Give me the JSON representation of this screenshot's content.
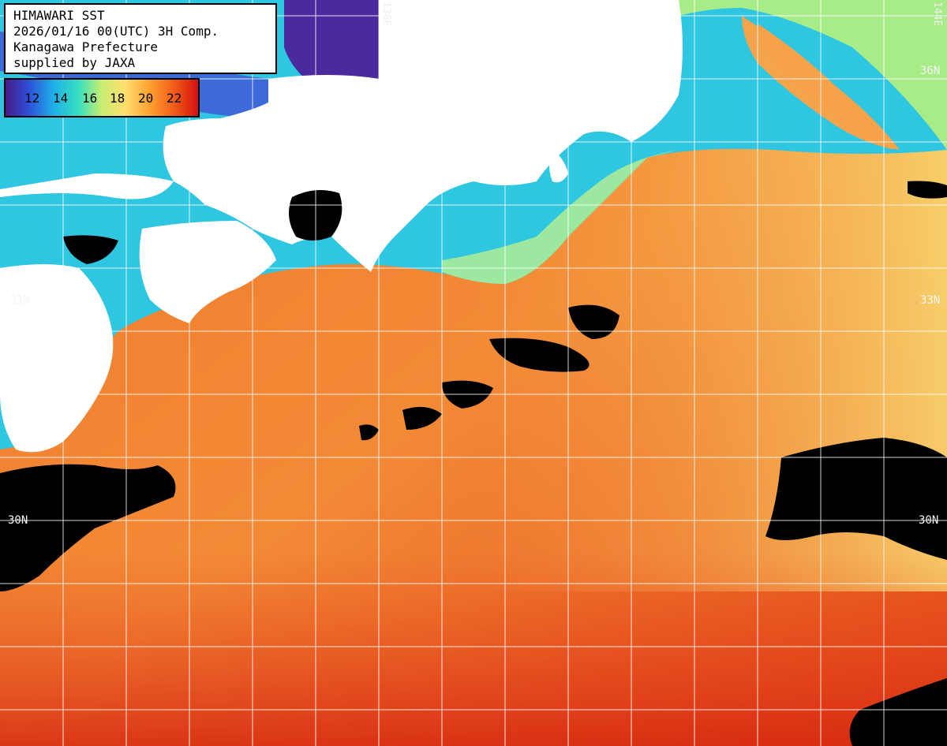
{
  "info": {
    "line1": "HIMAWARI SST",
    "line2": "2026/01/16 00(UTC) 3H Comp.",
    "line3": "Kanagawa Prefecture",
    "line4": "supplied by JAXA"
  },
  "colorbar": {
    "ticks": [
      "12",
      "14",
      "16",
      "18",
      "20",
      "22"
    ],
    "colors": [
      "#4b1a8a",
      "#2d4fd8",
      "#1fb0e8",
      "#38e0c0",
      "#c8ee70",
      "#ffe070",
      "#ffa030",
      "#f05a18",
      "#d41010"
    ]
  },
  "grid": {
    "lat_labels": [
      "36N",
      "33N",
      "30N"
    ],
    "lon_labels": [
      "136E",
      "144E"
    ]
  },
  "colors": {
    "land": "#ffffff",
    "no_data": "#000000",
    "grid": "#ffffff"
  }
}
